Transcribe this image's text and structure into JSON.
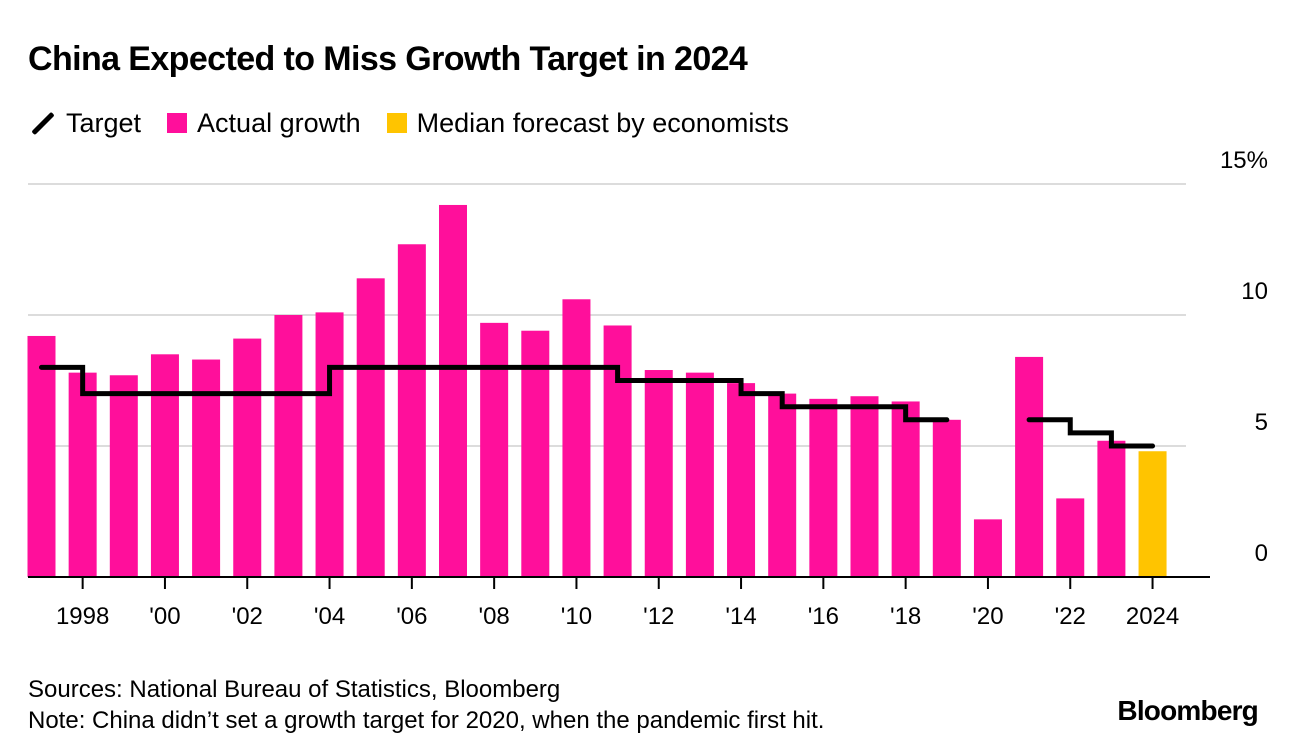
{
  "title": "China Expected to Miss Growth Target in 2024",
  "legend": [
    {
      "label": "Target",
      "kind": "line",
      "color": "#000000"
    },
    {
      "label": "Actual growth",
      "kind": "swatch",
      "color": "#ff0f9b"
    },
    {
      "label": "Median forecast by economists",
      "kind": "swatch",
      "color": "#ffc400"
    }
  ],
  "chart_data": {
    "type": "bar",
    "years": [
      1997,
      1998,
      1999,
      2000,
      2001,
      2002,
      2003,
      2004,
      2005,
      2006,
      2007,
      2008,
      2009,
      2010,
      2011,
      2012,
      2013,
      2014,
      2015,
      2016,
      2017,
      2018,
      2019,
      2020,
      2021,
      2022,
      2023,
      2024
    ],
    "series": [
      {
        "name": "Actual growth",
        "color": "#ff0f9b",
        "values": [
          9.2,
          7.8,
          7.7,
          8.5,
          8.3,
          9.1,
          10.0,
          10.1,
          11.4,
          12.7,
          14.2,
          9.7,
          9.4,
          10.6,
          9.6,
          7.9,
          7.8,
          7.4,
          7.0,
          6.8,
          6.9,
          6.7,
          6.0,
          2.2,
          8.4,
          3.0,
          5.2,
          null
        ]
      },
      {
        "name": "Median forecast by economists",
        "color": "#ffc400",
        "values": [
          null,
          null,
          null,
          null,
          null,
          null,
          null,
          null,
          null,
          null,
          null,
          null,
          null,
          null,
          null,
          null,
          null,
          null,
          null,
          null,
          null,
          null,
          null,
          null,
          null,
          null,
          null,
          4.8
        ]
      },
      {
        "name": "Target",
        "type": "step-line",
        "color": "#000000",
        "values": [
          8,
          7,
          7,
          7,
          7,
          7,
          7,
          8,
          8,
          8,
          8,
          8,
          8,
          8,
          7.5,
          7.5,
          7.5,
          7,
          6.5,
          6.5,
          6.5,
          6,
          6,
          null,
          6,
          5.5,
          5,
          5
        ]
      }
    ],
    "x_ticks": [
      {
        "year": 1998,
        "label": "1998"
      },
      {
        "year": 2000,
        "label": "'00"
      },
      {
        "year": 2002,
        "label": "'02"
      },
      {
        "year": 2004,
        "label": "'04"
      },
      {
        "year": 2006,
        "label": "'06"
      },
      {
        "year": 2008,
        "label": "'08"
      },
      {
        "year": 2010,
        "label": "'10"
      },
      {
        "year": 2012,
        "label": "'12"
      },
      {
        "year": 2014,
        "label": "'14"
      },
      {
        "year": 2016,
        "label": "'16"
      },
      {
        "year": 2018,
        "label": "'18"
      },
      {
        "year": 2020,
        "label": "'20"
      },
      {
        "year": 2022,
        "label": "'22"
      },
      {
        "year": 2024,
        "label": "2024"
      }
    ],
    "y_ticks": [
      {
        "value": 15,
        "label": "15%"
      },
      {
        "value": 10,
        "label": "10"
      },
      {
        "value": 5,
        "label": "5"
      },
      {
        "value": 0,
        "label": "0"
      }
    ],
    "ylim": [
      0,
      15
    ],
    "grid": true,
    "legend_position": "top-left"
  },
  "footer": {
    "sources": "Sources: National Bureau of Statistics, Bloomberg",
    "note": "Note: China didn’t set a growth target for 2020, when the pandemic first hit."
  },
  "brand": "Bloomberg"
}
